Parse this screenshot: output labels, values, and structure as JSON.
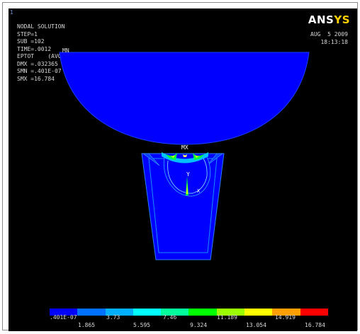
{
  "window_number": "1",
  "logo": {
    "main": "ANS",
    "accent": "YS"
  },
  "info_lines": [
    "NODAL SOLUTION",
    "STEP=1",
    "SUB =102",
    "TIME=.0012",
    "EPTOT    (AVG)",
    "DMX =.032365",
    "SMN =.401E-07",
    "SMX =16.784"
  ],
  "date": "AUG  5 2009",
  "time": "18:13:18",
  "labels": {
    "mn": "MN",
    "mx": "MX",
    "y": "Y",
    "x": "X"
  },
  "legend": {
    "colors": [
      "#0000ff",
      "#0070ff",
      "#00b0ff",
      "#00ffff",
      "#00ff9c",
      "#00ff00",
      "#9cff00",
      "#ffff00",
      "#ffa000",
      "#ff0000"
    ],
    "top_ticks": [
      ".401E-07",
      "3.73",
      "7.46",
      "11.189",
      "14.919"
    ],
    "bottom_ticks": [
      "1.865",
      "5.595",
      "9.324",
      "13.054",
      "16.784"
    ]
  }
}
